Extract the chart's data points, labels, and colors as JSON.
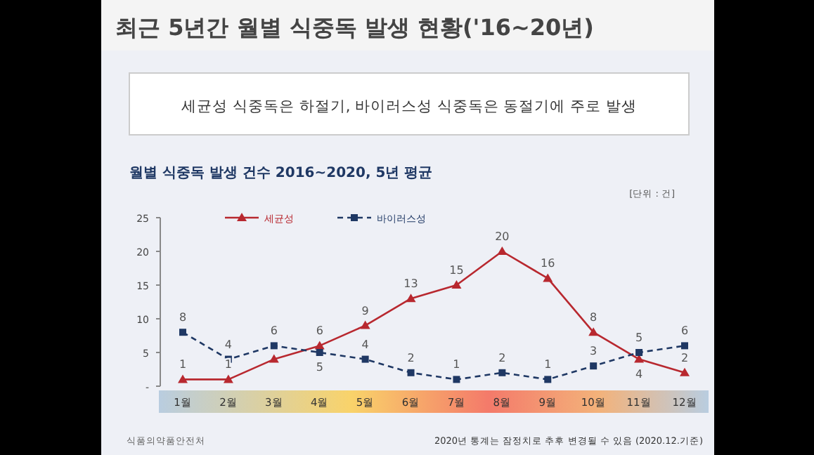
{
  "chart_data": {
    "type": "line",
    "title": "최근 5년간 월별 식중독 발생 현황('16~20년)",
    "subtitle": "월별 식중독 발생 건수 2016~2020, 5년 평균",
    "annotations": [
      "세균성 식중독은 하절기, 바이러스성 식중독은 동절기에 주로 발생",
      "[단위 : 건]",
      "2020년 통계는 잠정치로 추후 변경될 수 있음 (2020.12.기준)",
      "식품의약품안전처"
    ],
    "categories": [
      "1월",
      "2월",
      "3월",
      "4월",
      "5월",
      "6월",
      "7월",
      "8월",
      "9월",
      "10월",
      "11월",
      "12월"
    ],
    "series": [
      {
        "name": "세균성",
        "color": "#b8282f",
        "marker": "triangle",
        "line_style": "solid",
        "values": [
          1,
          1,
          4,
          6,
          9,
          13,
          15,
          20,
          16,
          8,
          4,
          2
        ],
        "value_labels": [
          "1",
          "1",
          null,
          "6",
          "9",
          "13",
          "15",
          "20",
          "16",
          "8",
          "4",
          "2"
        ]
      },
      {
        "name": "바이러스성",
        "color": "#1f3864",
        "marker": "square",
        "line_style": "dashed",
        "values": [
          8,
          4,
          6,
          5,
          4,
          2,
          1,
          2,
          1,
          3,
          5,
          6
        ],
        "value_labels": [
          "8",
          "4",
          "6",
          "5",
          "4",
          "2",
          "1",
          "2",
          "1",
          "3",
          "5",
          "6"
        ]
      }
    ],
    "ylim": [
      0,
      25
    ],
    "yticks": [
      {
        "value": 0,
        "label": "-"
      },
      5,
      10,
      15,
      20,
      25
    ],
    "legend": "top left",
    "grid": false
  }
}
